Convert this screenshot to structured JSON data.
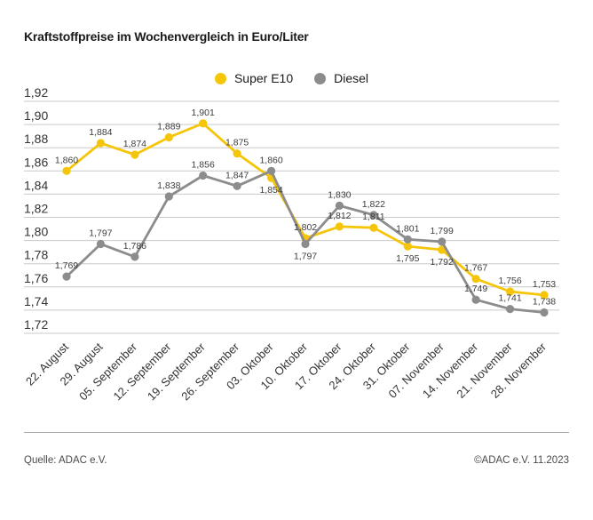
{
  "title": "Kraftstoffpreise im Wochenvergleich in Euro/Liter",
  "legend": [
    {
      "label": "Super E10",
      "color": "#f5c50a"
    },
    {
      "label": "Diesel",
      "color": "#8c8c8c"
    }
  ],
  "footer": {
    "source": "Quelle: ADAC e.V.",
    "copyright": "©ADAC e.V. 11.2023"
  },
  "colors": {
    "super_e10": "#f5c50a",
    "diesel": "#8c8c8c",
    "gridline": "#c9c9c9",
    "separator": "#a6a6a6"
  },
  "chart_data": {
    "type": "line",
    "title": "Kraftstoffpreise im Wochenvergleich in Euro/Liter",
    "xlabel": "",
    "ylabel": "Euro/Liter",
    "ylim": [
      1.72,
      1.92
    ],
    "ytick_step": 0.02,
    "ytick_labels": [
      "1,92",
      "1,90",
      "1,88",
      "1,86",
      "1,84",
      "1,82",
      "1,80",
      "1,78",
      "1,76",
      "1,74",
      "1,72"
    ],
    "grid": true,
    "legend_position": "top-center",
    "x": [
      "22. August",
      "29. August",
      "05. September",
      "12. September",
      "19. September",
      "26. September",
      "03. Oktober",
      "10. Oktober",
      "17. Oktober",
      "24. Oktober",
      "31. Oktober",
      "07. November",
      "14. November",
      "21. November",
      "28. November"
    ],
    "series": [
      {
        "name": "Super E10",
        "color": "#f5c50a",
        "values": [
          1.86,
          1.884,
          1.874,
          1.889,
          1.901,
          1.875,
          1.854,
          1.802,
          1.812,
          1.811,
          1.795,
          1.792,
          1.767,
          1.756,
          1.753
        ],
        "labels": [
          "1,860",
          "1,884",
          "1,874",
          "1,889",
          "1,901",
          "1,875",
          "1,854",
          "1,802",
          "1,812",
          "1,811",
          "1,795",
          "1,792",
          "1,767",
          "1,756",
          "1,753"
        ],
        "label_pos": [
          "above",
          "above",
          "above",
          "above",
          "above",
          "above",
          "below",
          "above",
          "above",
          "above",
          "below",
          "below",
          "above",
          "above",
          "above"
        ]
      },
      {
        "name": "Diesel",
        "color": "#8c8c8c",
        "values": [
          1.769,
          1.797,
          1.786,
          1.838,
          1.856,
          1.847,
          1.86,
          1.797,
          1.83,
          1.822,
          1.801,
          1.799,
          1.749,
          1.741,
          1.738
        ],
        "labels": [
          "1,769",
          "1,797",
          "1,786",
          "1,838",
          "1,856",
          "1,847",
          "1,860",
          "1,797",
          "1,830",
          "1,822",
          "1,801",
          "1,799",
          "1,749",
          "1,741",
          "1,738"
        ],
        "label_pos": [
          "above",
          "above",
          "above",
          "above",
          "above",
          "above",
          "above",
          "below",
          "above",
          "above",
          "above",
          "above",
          "above",
          "above",
          "above"
        ]
      }
    ]
  }
}
